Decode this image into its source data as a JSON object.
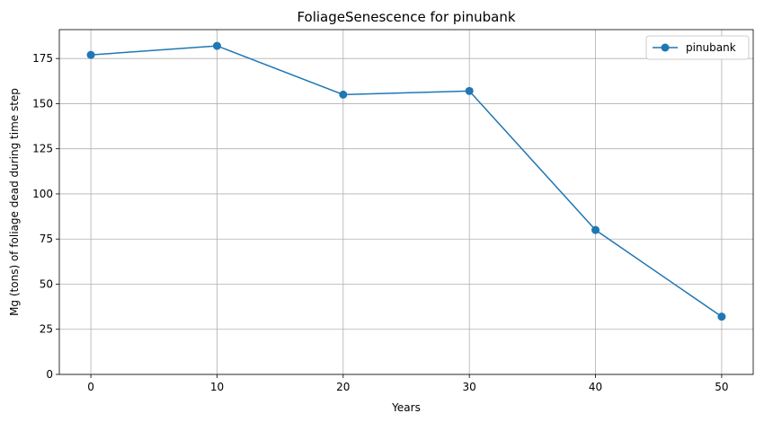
{
  "chart_data": {
    "type": "line",
    "title": "FoliageSenescence for pinubank",
    "xlabel": "Years",
    "ylabel": "Mg (tons) of foliage dead during time step",
    "x": [
      0,
      10,
      20,
      30,
      40,
      50
    ],
    "series": [
      {
        "name": "pinubank",
        "values": [
          177,
          182,
          155,
          157,
          80,
          32
        ],
        "color": "#1f77b4"
      }
    ],
    "xlim": [
      -2.5,
      52.5
    ],
    "ylim": [
      0,
      191
    ],
    "xticks": [
      0,
      10,
      20,
      30,
      40,
      50
    ],
    "yticks": [
      0,
      25,
      50,
      75,
      100,
      125,
      150,
      175
    ],
    "grid": true,
    "legend_position": "top-right",
    "marker": "circle"
  }
}
